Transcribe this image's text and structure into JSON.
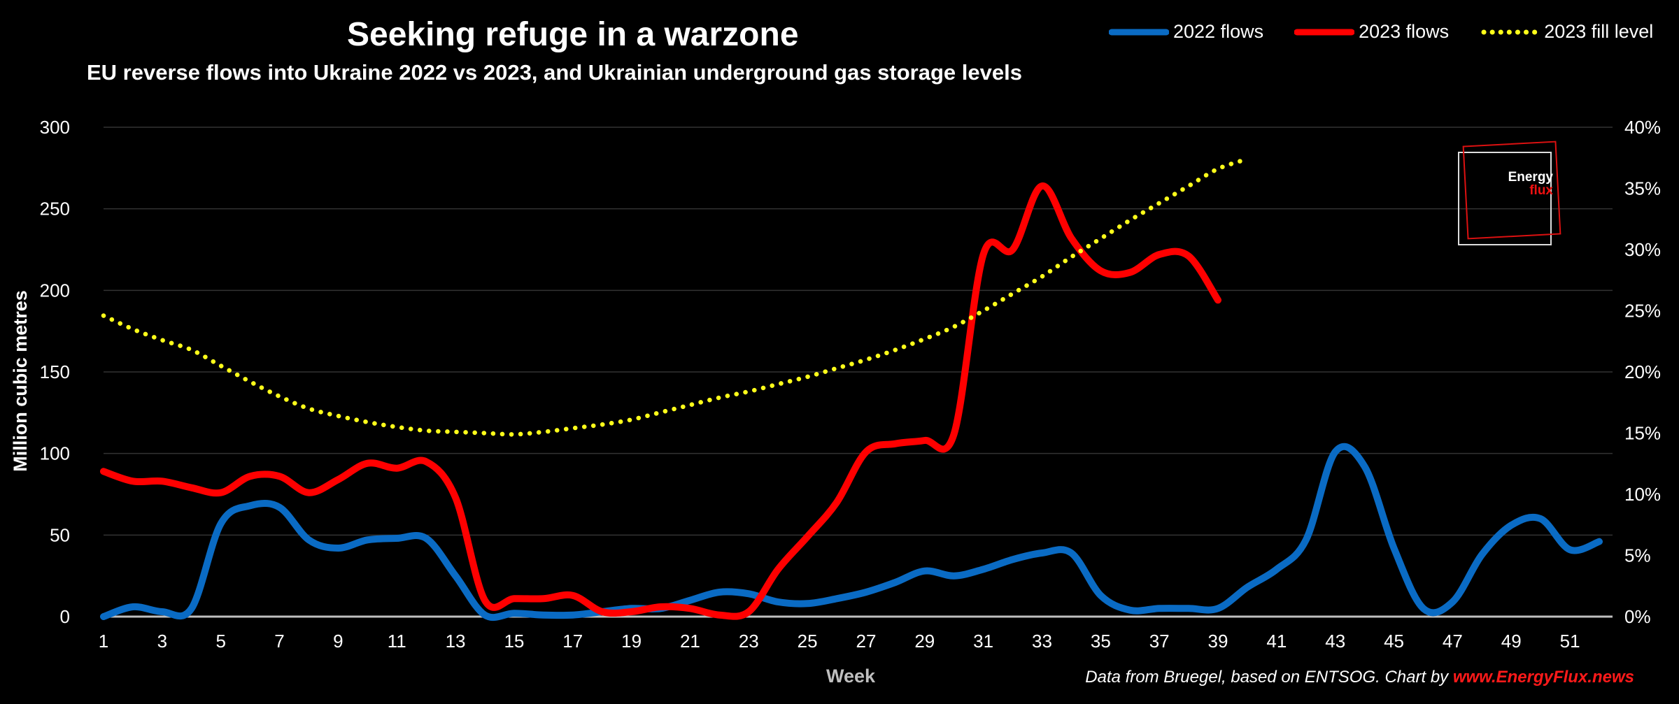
{
  "title": "Seeking refuge in a warzone",
  "subtitle": "EU reverse flows into Ukraine 2022 vs 2023, and Ukrainian underground gas storage levels",
  "source": {
    "text": "Data from Bruegel, based on ENTSOG. Chart by ",
    "link": "www.EnergyFlux.news"
  },
  "logo": {
    "line1": "Energy",
    "line2": "flux"
  },
  "colors": {
    "s2022": "#0a6bc4",
    "s2023": "#ff0000",
    "fill": "#ffff1a",
    "grid": "#333333",
    "axis": "#bfbfbf"
  },
  "chart_data": {
    "type": "line",
    "xlabel": "Week",
    "ylabel": "Million cubic metres",
    "xlim": [
      1,
      52
    ],
    "ylim": [
      0,
      300
    ],
    "y2lim": [
      0,
      40
    ],
    "xticks": [
      1,
      3,
      5,
      7,
      9,
      11,
      13,
      15,
      17,
      19,
      21,
      23,
      25,
      27,
      29,
      31,
      33,
      35,
      37,
      39,
      41,
      43,
      45,
      47,
      49,
      51
    ],
    "yticks": [
      0,
      50,
      100,
      150,
      200,
      250,
      300
    ],
    "y2ticks": [
      "0%",
      "5%",
      "10%",
      "15%",
      "20%",
      "25%",
      "30%",
      "35%",
      "40%"
    ],
    "grid": true,
    "legend": "top-right",
    "series": [
      {
        "name": "2022 flows",
        "axis": "left",
        "style": "solid",
        "x": [
          1,
          2,
          3,
          4,
          5,
          6,
          7,
          8,
          9,
          10,
          11,
          12,
          13,
          14,
          15,
          16,
          17,
          18,
          19,
          20,
          21,
          22,
          23,
          24,
          25,
          26,
          27,
          28,
          29,
          30,
          31,
          32,
          33,
          34,
          35,
          36,
          37,
          38,
          39,
          40,
          41,
          42,
          43,
          44,
          45,
          46,
          47,
          48,
          49,
          50,
          51,
          52
        ],
        "y": [
          0,
          6,
          3,
          5,
          57,
          68,
          67,
          47,
          42,
          47,
          48,
          48,
          25,
          1,
          2,
          1,
          1,
          3,
          5,
          5,
          10,
          15,
          14,
          9,
          8,
          11,
          15,
          21,
          28,
          25,
          29,
          35,
          39,
          39,
          13,
          4,
          5,
          5,
          5,
          18,
          29,
          47,
          101,
          92,
          42,
          5,
          9,
          38,
          56,
          60,
          41,
          46
        ]
      },
      {
        "name": "2023 flows",
        "axis": "left",
        "style": "solid",
        "x": [
          1,
          2,
          3,
          4,
          5,
          6,
          7,
          8,
          9,
          10,
          11,
          12,
          13,
          14,
          15,
          16,
          17,
          18,
          19,
          20,
          21,
          22,
          23,
          24,
          25,
          26,
          27,
          28,
          29,
          30,
          31,
          32,
          33,
          34,
          35,
          36,
          37,
          38,
          39
        ],
        "y": [
          89,
          83,
          83,
          79,
          76,
          86,
          86,
          76,
          84,
          94,
          91,
          95,
          73,
          10,
          11,
          11,
          13,
          3,
          3,
          6,
          5,
          1,
          3,
          29,
          49,
          70,
          101,
          106,
          108,
          112,
          222,
          225,
          264,
          232,
          212,
          211,
          222,
          221,
          194
        ]
      },
      {
        "name": "2023 fill level",
        "axis": "right",
        "style": "dotted",
        "x": [
          1,
          2,
          3,
          4,
          5,
          6,
          7,
          8,
          9,
          10,
          11,
          12,
          13,
          14,
          15,
          16,
          17,
          18,
          19,
          20,
          21,
          22,
          23,
          24,
          25,
          26,
          27,
          28,
          29,
          30,
          31,
          32,
          33,
          34,
          35,
          36,
          37,
          38,
          39,
          40
        ],
        "y": [
          24.6,
          23.5,
          22.6,
          21.8,
          20.5,
          19.2,
          18.0,
          17.0,
          16.4,
          15.9,
          15.5,
          15.2,
          15.1,
          15.0,
          14.9,
          15.1,
          15.4,
          15.7,
          16.1,
          16.7,
          17.3,
          17.9,
          18.4,
          19.0,
          19.6,
          20.3,
          21.0,
          21.8,
          22.7,
          23.7,
          25.0,
          26.4,
          27.8,
          29.4,
          30.9,
          32.4,
          33.8,
          35.2,
          36.6,
          37.4
        ]
      }
    ]
  }
}
